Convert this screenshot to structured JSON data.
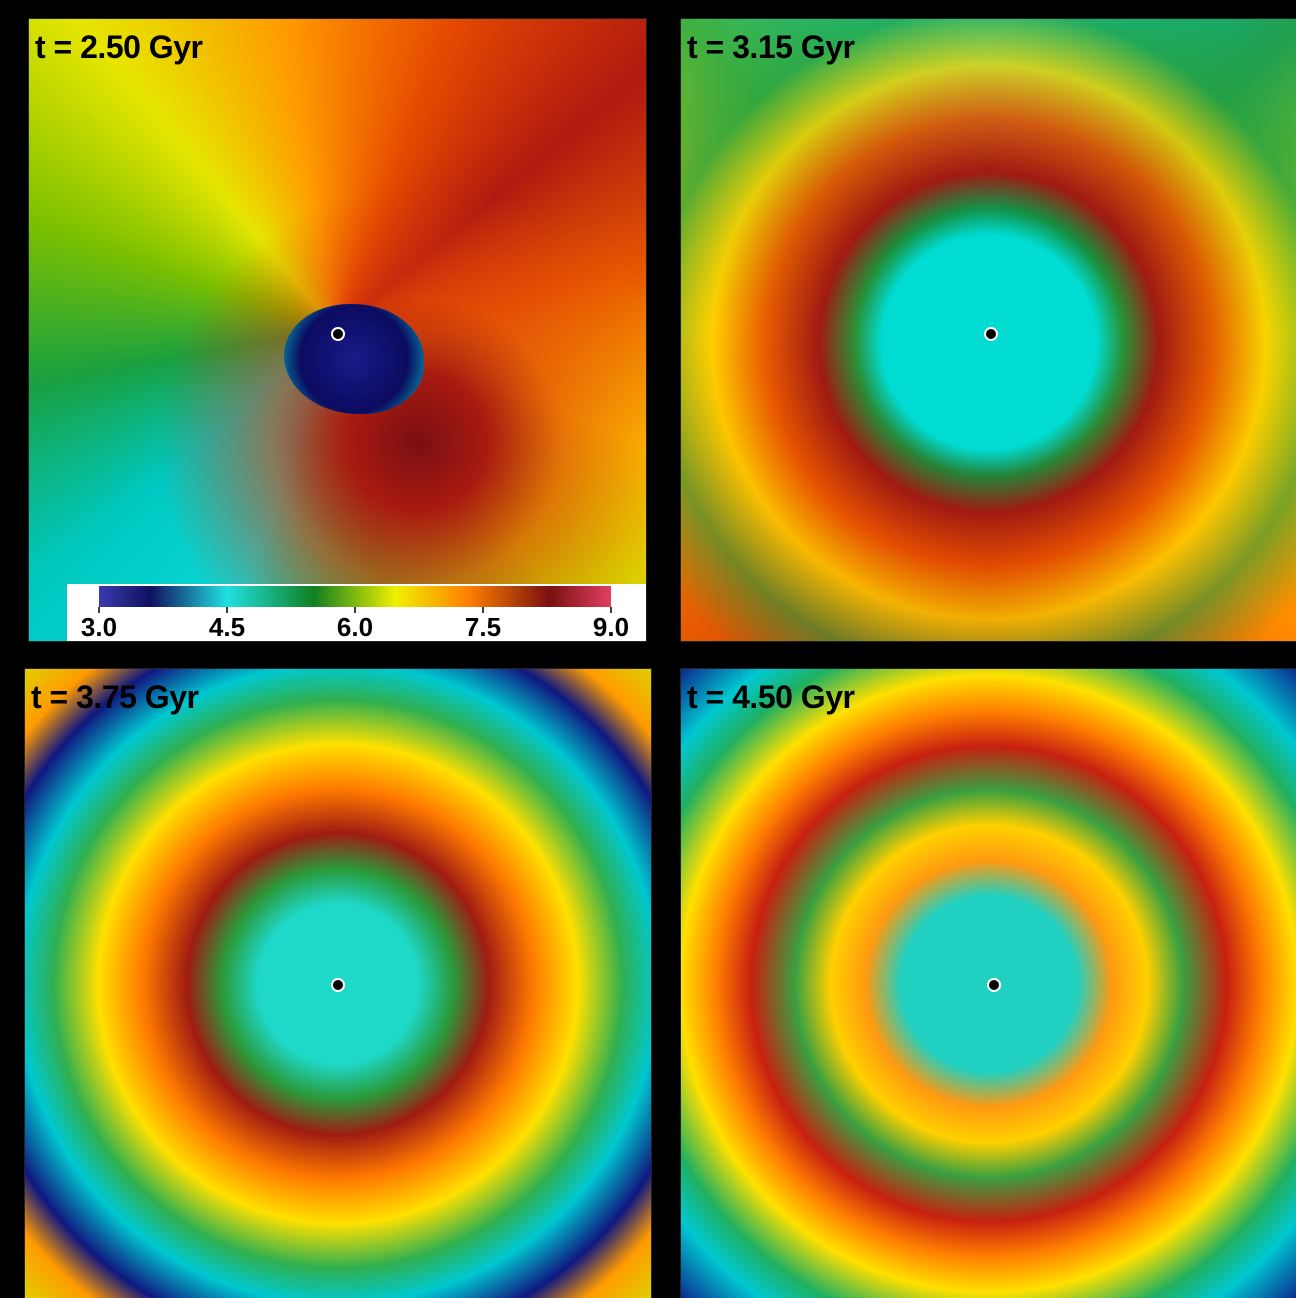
{
  "panels": [
    {
      "label": "t = 2.50 Gyr"
    },
    {
      "label": "t = 3.15 Gyr"
    },
    {
      "label": "t = 3.75 Gyr"
    },
    {
      "label": "t = 4.50 Gyr"
    }
  ],
  "colorbar": {
    "lim": [
      3,
      9
    ],
    "ticks": [
      {
        "value": 3,
        "label": "3.0"
      },
      {
        "value": 4.5,
        "label": "4.5"
      },
      {
        "value": 6,
        "label": "6.0"
      },
      {
        "value": 7.5,
        "label": "7.5"
      },
      {
        "value": 9,
        "label": "9.0"
      }
    ]
  }
}
